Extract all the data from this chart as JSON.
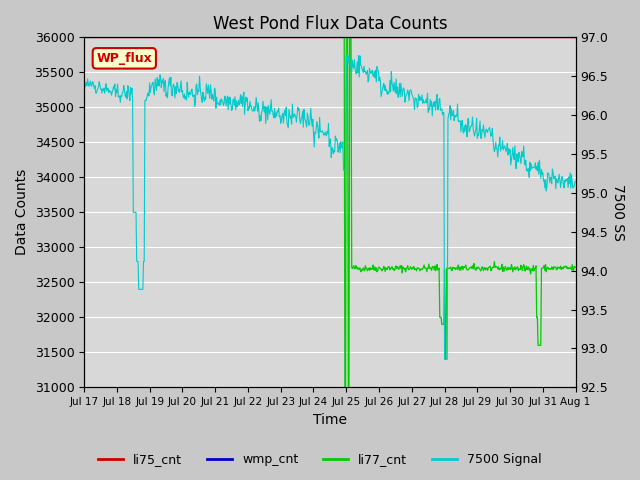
{
  "title": "West Pond Flux Data Counts",
  "xlabel": "Time",
  "ylabel_left": "Data Counts",
  "ylabel_right": "7500 SS",
  "ylim_left": [
    31000,
    36000
  ],
  "ylim_right": [
    92.5,
    97.0
  ],
  "xtick_labels": [
    "Jul 17",
    "Jul 18",
    "Jul 19",
    "Jul 20",
    "Jul 21",
    "Jul 22",
    "Jul 23",
    "Jul 24",
    "Jul 25",
    "Jul 26",
    "Jul 27",
    "Jul 28",
    "Jul 29",
    "Jul 30",
    "Jul 31",
    "Aug 1"
  ],
  "bg_color": "#c8c8c8",
  "plot_bg_color": "#d8d8d8",
  "legend_entries": [
    "li75_cnt",
    "wmp_cnt",
    "li77_cnt",
    "7500 Signal"
  ],
  "legend_colors": [
    "#cc0000",
    "#0000cc",
    "#00cc00",
    "#00cccc"
  ],
  "wp_flux_label": "WP_flux",
  "wp_flux_bg": "#ffffcc",
  "wp_flux_border": "#cc0000",
  "wp_flux_text": "#cc0000",
  "yticks_left": [
    31000,
    31500,
    32000,
    32500,
    33000,
    33500,
    34000,
    34500,
    35000,
    35500,
    36000
  ],
  "yticks_right": [
    92.5,
    93.0,
    93.5,
    94.0,
    94.5,
    95.0,
    95.5,
    96.0,
    96.5,
    97.0
  ]
}
